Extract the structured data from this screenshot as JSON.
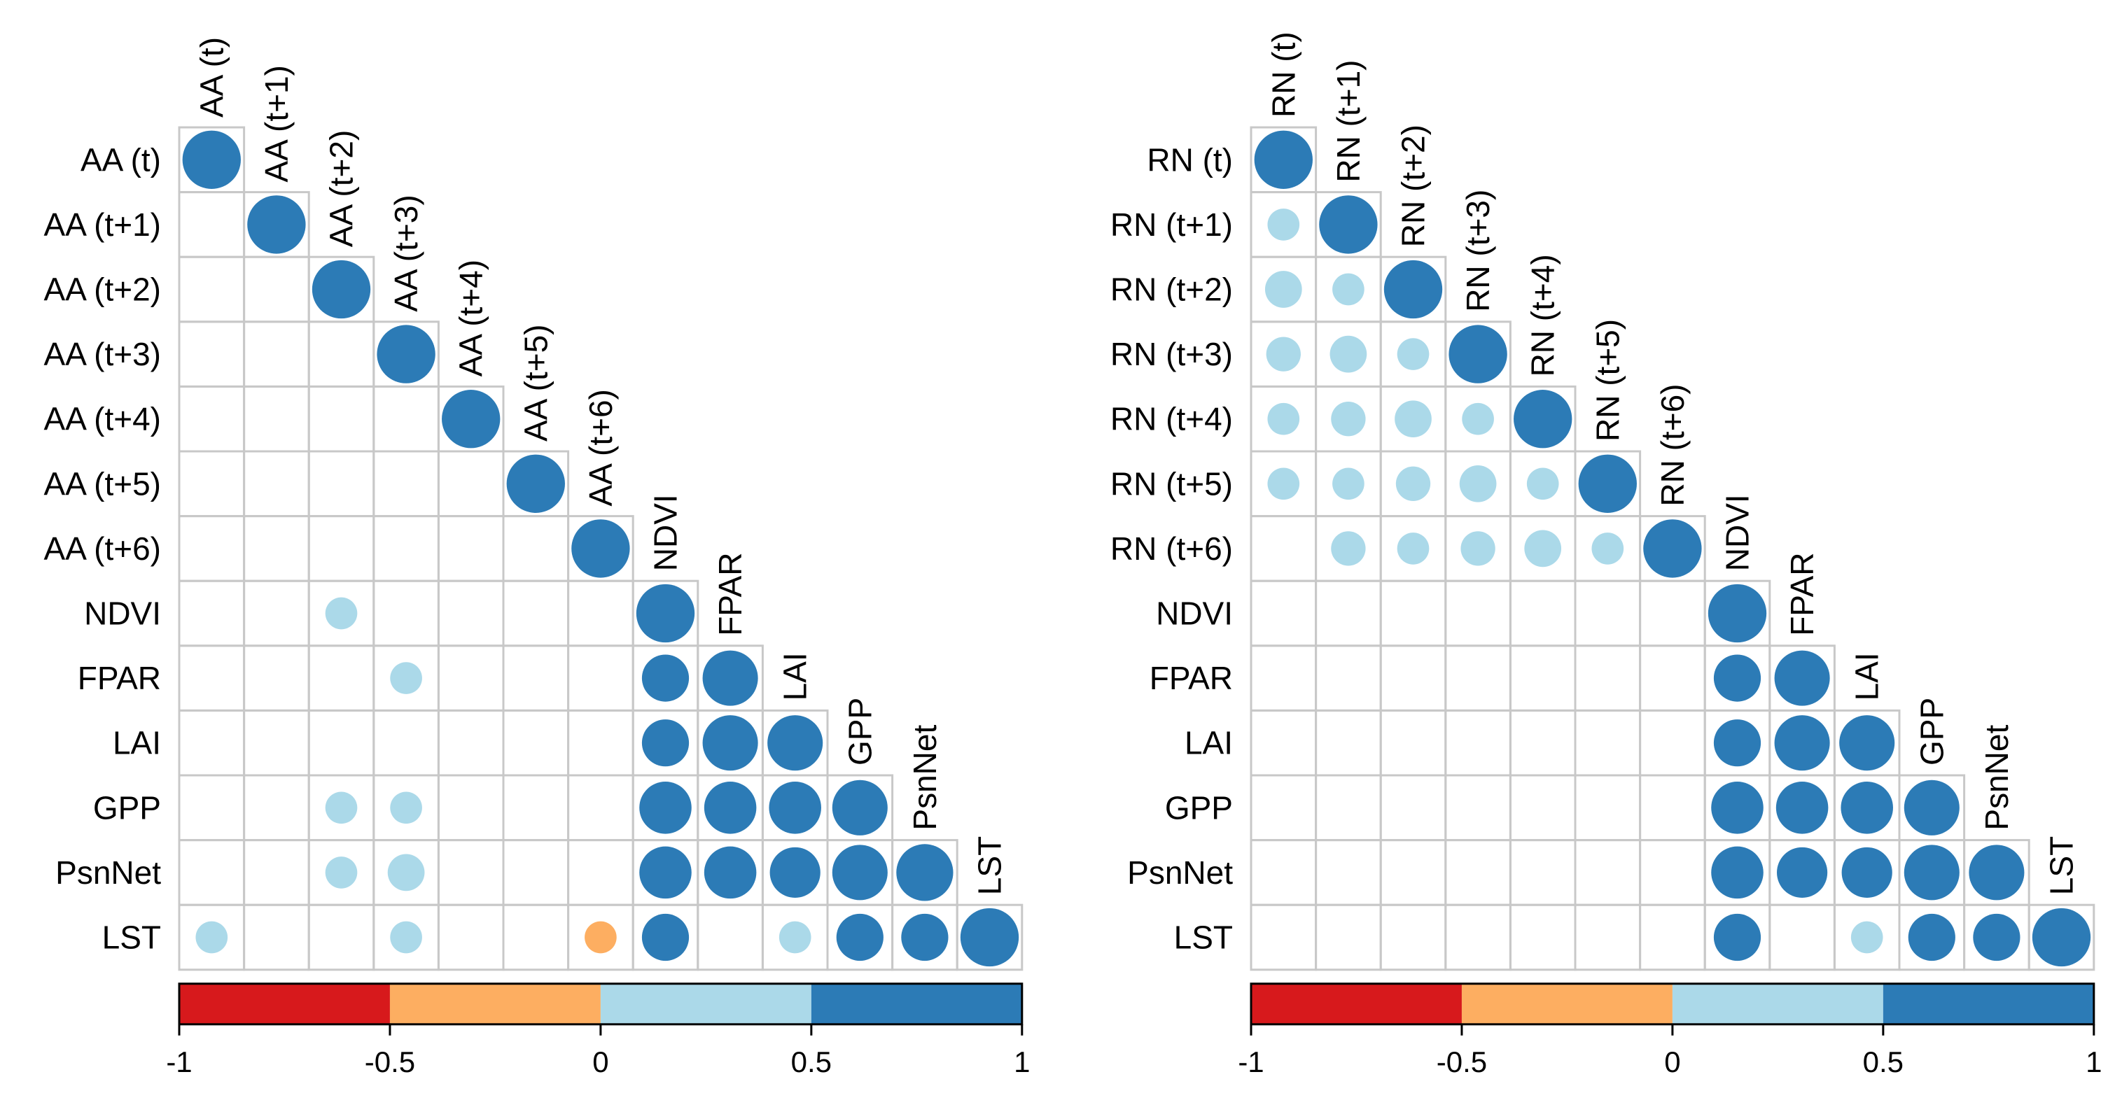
{
  "chart_data": [
    {
      "type": "heatmap",
      "subtype": "correlogram-lower-triangle",
      "title": "",
      "variables": [
        "AA (t)",
        "AA (t+1)",
        "AA (t+2)",
        "AA (t+3)",
        "AA (t+4)",
        "AA (t+5)",
        "AA (t+6)",
        "NDVI",
        "FPAR",
        "LAI",
        "GPP",
        "PsnNet",
        "LST"
      ],
      "matrix": [
        [
          1.0,
          null,
          null,
          null,
          null,
          null,
          null,
          null,
          null,
          null,
          null,
          null,
          null
        ],
        [
          null,
          1.0,
          null,
          null,
          null,
          null,
          null,
          null,
          null,
          null,
          null,
          null,
          null
        ],
        [
          null,
          null,
          1.0,
          null,
          null,
          null,
          null,
          null,
          null,
          null,
          null,
          null,
          null
        ],
        [
          null,
          null,
          null,
          1.0,
          null,
          null,
          null,
          null,
          null,
          null,
          null,
          null,
          null
        ],
        [
          null,
          null,
          null,
          null,
          1.0,
          null,
          null,
          null,
          null,
          null,
          null,
          null,
          null
        ],
        [
          null,
          null,
          null,
          null,
          null,
          1.0,
          null,
          null,
          null,
          null,
          null,
          null,
          null
        ],
        [
          null,
          null,
          null,
          null,
          null,
          null,
          1.0,
          null,
          null,
          null,
          null,
          null,
          null
        ],
        [
          null,
          null,
          0.3,
          null,
          null,
          null,
          null,
          1.0,
          null,
          null,
          null,
          null,
          null
        ],
        [
          null,
          null,
          null,
          0.3,
          null,
          null,
          null,
          0.65,
          0.9,
          null,
          null,
          null,
          null
        ],
        [
          null,
          null,
          null,
          null,
          null,
          null,
          null,
          0.65,
          0.9,
          0.9,
          null,
          null,
          null
        ],
        [
          null,
          null,
          0.3,
          0.3,
          null,
          null,
          null,
          0.8,
          0.8,
          0.8,
          0.9,
          null,
          null
        ],
        [
          null,
          null,
          0.3,
          0.4,
          null,
          null,
          null,
          0.8,
          0.8,
          0.75,
          0.9,
          0.95,
          null
        ],
        [
          0.3,
          null,
          null,
          0.3,
          null,
          null,
          -0.3,
          0.65,
          null,
          0.3,
          0.65,
          0.65,
          1.0
        ]
      ],
      "colorbar": {
        "ticks": [
          "-1",
          "-0.5",
          "0",
          "0.5",
          "1"
        ],
        "breaks": [
          -1,
          -0.5,
          0,
          0.5,
          1
        ],
        "colors": [
          "#d7191c",
          "#fdae61",
          "#abd9e9",
          "#2c7bb6"
        ]
      }
    },
    {
      "type": "heatmap",
      "subtype": "correlogram-lower-triangle",
      "title": "",
      "variables": [
        "RN (t)",
        "RN (t+1)",
        "RN (t+2)",
        "RN (t+3)",
        "RN (t+4)",
        "RN (t+5)",
        "RN (t+6)",
        "NDVI",
        "FPAR",
        "LAI",
        "GPP",
        "PsnNet",
        "LST"
      ],
      "matrix": [
        [
          1.0,
          null,
          null,
          null,
          null,
          null,
          null,
          null,
          null,
          null,
          null,
          null,
          null
        ],
        [
          0.3,
          1.0,
          null,
          null,
          null,
          null,
          null,
          null,
          null,
          null,
          null,
          null,
          null
        ],
        [
          0.4,
          0.3,
          1.0,
          null,
          null,
          null,
          null,
          null,
          null,
          null,
          null,
          null,
          null
        ],
        [
          0.35,
          0.4,
          0.3,
          1.0,
          null,
          null,
          null,
          null,
          null,
          null,
          null,
          null,
          null
        ],
        [
          0.3,
          0.35,
          0.4,
          0.3,
          1.0,
          null,
          null,
          null,
          null,
          null,
          null,
          null,
          null
        ],
        [
          0.3,
          0.3,
          0.35,
          0.4,
          0.3,
          1.0,
          null,
          null,
          null,
          null,
          null,
          null,
          null
        ],
        [
          null,
          0.35,
          0.3,
          0.35,
          0.4,
          0.3,
          1.0,
          null,
          null,
          null,
          null,
          null,
          null
        ],
        [
          null,
          null,
          null,
          null,
          null,
          null,
          null,
          1.0,
          null,
          null,
          null,
          null,
          null
        ],
        [
          null,
          null,
          null,
          null,
          null,
          null,
          null,
          0.65,
          0.9,
          null,
          null,
          null,
          null
        ],
        [
          null,
          null,
          null,
          null,
          null,
          null,
          null,
          0.65,
          0.9,
          0.9,
          null,
          null,
          null
        ],
        [
          null,
          null,
          null,
          null,
          null,
          null,
          null,
          0.8,
          0.8,
          0.8,
          0.9,
          null,
          null
        ],
        [
          null,
          null,
          null,
          null,
          null,
          null,
          null,
          0.8,
          0.75,
          0.75,
          0.9,
          0.9,
          null
        ],
        [
          null,
          null,
          null,
          null,
          null,
          null,
          null,
          0.65,
          null,
          0.3,
          0.65,
          0.65,
          1.0
        ]
      ],
      "colorbar": {
        "ticks": [
          "-1",
          "-0.5",
          "0",
          "0.5",
          "1"
        ],
        "breaks": [
          -1,
          -0.5,
          0,
          0.5,
          1
        ],
        "colors": [
          "#d7191c",
          "#fdae61",
          "#abd9e9",
          "#2c7bb6"
        ]
      }
    }
  ]
}
